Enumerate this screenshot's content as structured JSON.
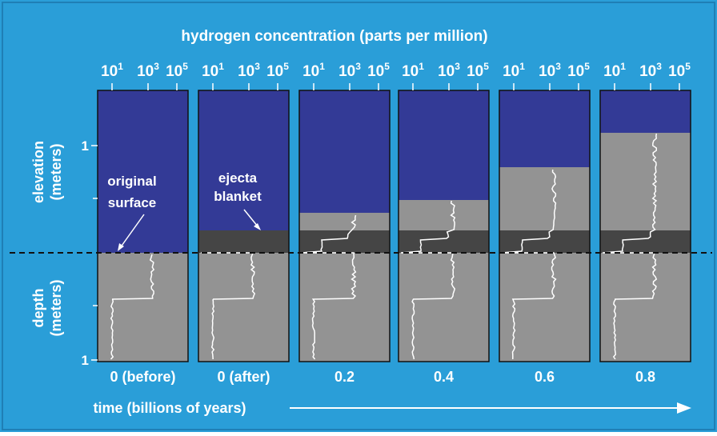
{
  "axis_title": "hydrogen concentration (parts per million)",
  "ticks": [
    {
      "base": "10",
      "exponent": "1"
    },
    {
      "base": "10",
      "exponent": "3"
    },
    {
      "base": "10",
      "exponent": "5"
    }
  ],
  "elevation_label": [
    "elevation",
    "(meters)"
  ],
  "depth_label": [
    "depth",
    "(meters)"
  ],
  "elevation_tick": "1",
  "depth_tick": "1",
  "annotations": {
    "original_surface": [
      "original",
      "surface"
    ],
    "ejecta_blanket": [
      "ejecta",
      "blanket"
    ]
  },
  "panels": [
    "0 (before)",
    "0 (after)",
    "0.2",
    "0.4",
    "0.6",
    "0.8"
  ],
  "time_label": "time (billions of years)"
}
